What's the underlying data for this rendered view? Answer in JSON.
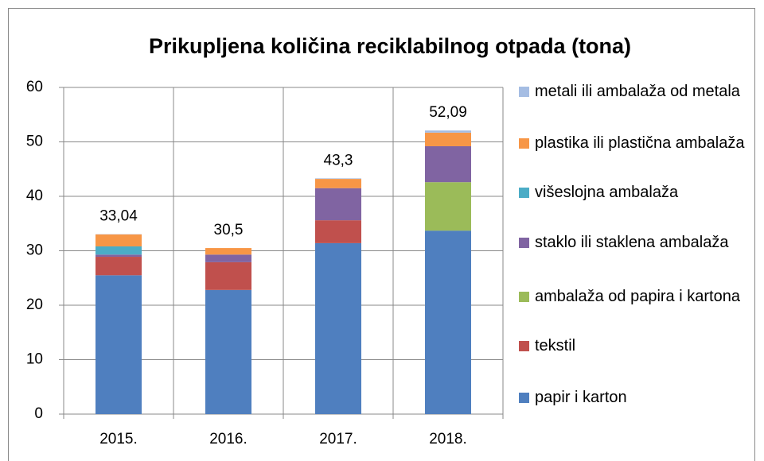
{
  "chart_data": {
    "type": "stacked_bar",
    "title": "Prikupljena količina reciklabilnog otpada (tona)",
    "categories": [
      "2015.",
      "2016.",
      "2017.",
      "2018."
    ],
    "series": [
      {
        "name": "papir i karton",
        "color": "#4f7fbf",
        "values": [
          25.5,
          22.8,
          31.4,
          33.7
        ]
      },
      {
        "name": "tekstil",
        "color": "#c0504d",
        "values": [
          3.4,
          5.1,
          4.2,
          0
        ]
      },
      {
        "name": "ambalaža od papira i kartona",
        "color": "#9bbb59",
        "values": [
          0,
          0,
          0,
          8.9
        ]
      },
      {
        "name": "staklo ili staklena ambalaža",
        "color": "#8064a2",
        "values": [
          0.4,
          1.4,
          5.9,
          6.6
        ]
      },
      {
        "name": "višeslojna ambalaža",
        "color": "#4bacc6",
        "values": [
          1.5,
          0,
          0,
          0
        ]
      },
      {
        "name": "plastika ili plastična ambalaža",
        "color": "#f79646",
        "values": [
          2.2,
          1.2,
          1.7,
          2.5
        ]
      },
      {
        "name": "metali ili ambalaža od metala",
        "color": "#a5bde3",
        "values": [
          0.04,
          0,
          0.1,
          0.39
        ]
      }
    ],
    "totals": [
      33.04,
      30.5,
      43.3,
      52.09
    ],
    "total_labels": [
      "33,04",
      "30,5",
      "43,3",
      "52,09"
    ],
    "ylim": [
      0,
      60
    ],
    "yticks": [
      0,
      10,
      20,
      30,
      40,
      50,
      60
    ],
    "grid": true,
    "legend": "right"
  }
}
